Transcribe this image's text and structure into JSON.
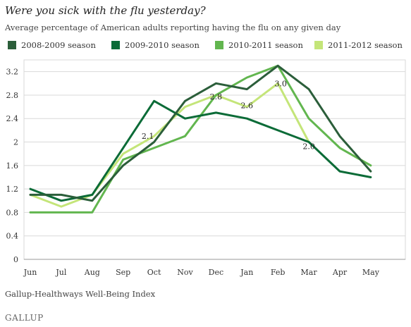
{
  "title": "Were you sick with the flu yesterday?",
  "subtitle": "Average percentage of American adults reporting having the flu on any given day",
  "source": "Gallup-Healthways Well-Being Index",
  "brand": "GALLUP",
  "chart_data": {
    "type": "line",
    "categories": [
      "Jun",
      "Jul",
      "Aug",
      "Sep",
      "Oct",
      "Nov",
      "Dec",
      "Jan",
      "Feb",
      "Mar",
      "Apr",
      "May"
    ],
    "ylim": [
      0,
      3.4
    ],
    "yticks": [
      0,
      0.4,
      0.8,
      1.2,
      1.6,
      2,
      2.4,
      2.8,
      3.2
    ],
    "ytick_labels": [
      "0",
      "0.4",
      "0.8",
      "1.2",
      "1.6",
      "2",
      "2.4",
      "2.8",
      "3.2"
    ],
    "grid": "horizontal",
    "legend_position": "top",
    "series": [
      {
        "name": "2008-2009 season",
        "color": "#2b5e3a",
        "values": [
          1.1,
          1.1,
          1.0,
          1.6,
          2.0,
          2.7,
          3.0,
          2.9,
          3.3,
          2.9,
          2.1,
          1.5
        ]
      },
      {
        "name": "2009-2010 season",
        "color": "#0b6b37",
        "values": [
          1.2,
          1.0,
          1.1,
          1.9,
          2.7,
          2.4,
          2.5,
          2.4,
          2.2,
          2.0,
          1.5,
          1.4
        ]
      },
      {
        "name": "2010-2011 season",
        "color": "#62b64f",
        "values": [
          0.8,
          0.8,
          0.8,
          1.7,
          1.9,
          2.1,
          2.8,
          3.1,
          3.3,
          2.4,
          1.9,
          1.6
        ]
      },
      {
        "name": "2011-2012 season",
        "color": "#c4e579",
        "values": [
          1.1,
          0.9,
          1.1,
          1.8,
          2.1,
          2.6,
          2.8,
          2.6,
          3.0,
          2.0,
          null,
          null
        ]
      }
    ],
    "annotations": [
      {
        "text": "2.1",
        "x": "Oct",
        "y": 2.1
      },
      {
        "text": "2.8",
        "x": "Dec",
        "y": 2.8
      },
      {
        "text": "2.6",
        "x": "Jan",
        "y": 2.6
      },
      {
        "text": "3.0",
        "x": "Feb",
        "y": 3.0
      },
      {
        "text": "2.0",
        "x": "Mar",
        "y": 2.0
      }
    ]
  }
}
